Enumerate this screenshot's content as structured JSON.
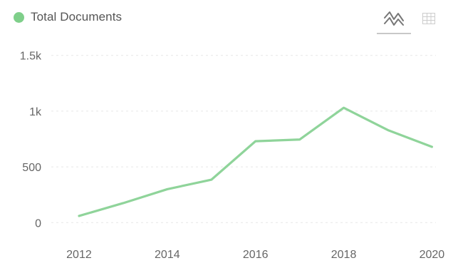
{
  "legend": {
    "label": "Total Documents",
    "color": "#7fcf8a"
  },
  "toolbar": {
    "buttons": [
      {
        "icon": "line-chart-icon",
        "active": true
      },
      {
        "icon": "table-icon",
        "active": false
      }
    ]
  },
  "chart_data": {
    "type": "line",
    "title": "",
    "xlabel": "",
    "ylabel": "",
    "x": [
      2012,
      2013,
      2014,
      2015,
      2016,
      2017,
      2018,
      2019,
      2020
    ],
    "series": [
      {
        "name": "Total Documents",
        "color": "#8fd49a",
        "values": [
          60,
          175,
          300,
          385,
          730,
          745,
          1030,
          830,
          680
        ]
      }
    ],
    "xlim": [
      2011.5,
      2020.3
    ],
    "ylim": [
      -100,
      1600
    ],
    "x_ticks": [
      2012,
      2014,
      2016,
      2018,
      2020
    ],
    "x_tick_labels": [
      "2012",
      "2014",
      "2016",
      "2018",
      "2020"
    ],
    "y_ticks": [
      0,
      500,
      1000,
      1500
    ],
    "y_tick_labels": [
      "0",
      "500",
      "1k",
      "1.5k"
    ],
    "grid": true,
    "legend_position": "top-left"
  }
}
